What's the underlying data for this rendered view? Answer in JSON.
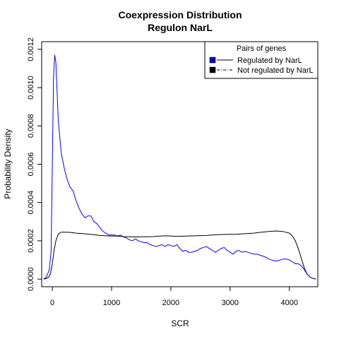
{
  "chart_data": {
    "type": "line",
    "title": [
      "Coexpression Distribution",
      "Regulon NarL"
    ],
    "xlabel": "SCR",
    "ylabel": "Probability Density",
    "xlim": [
      -180,
      4480
    ],
    "ylim": [
      -4e-05,
      0.00124
    ],
    "x_ticks": [
      0,
      1000,
      2000,
      3000,
      4000
    ],
    "x_tick_labels": [
      "0",
      "1000",
      "2000",
      "3000",
      "4000"
    ],
    "y_ticks": [
      0,
      0.0002,
      0.0004,
      0.0006,
      0.0008,
      0.001,
      0.0012
    ],
    "y_tick_labels": [
      "0.0000",
      "0.0002",
      "0.0004",
      "0.0006",
      "0.0008",
      "0.0010",
      "0.0012"
    ],
    "grid": false,
    "legend": {
      "title": "Pairs of genes",
      "position": "top-right",
      "entries": [
        "Regulated by  NarL",
        "Not regulated by  NarL"
      ]
    },
    "series": [
      {
        "name": "Regulated by  NarL",
        "color": "#0000ff",
        "style": "solid",
        "x": [
          -150,
          -100,
          -50,
          -20,
          0,
          20,
          40,
          60,
          80,
          100,
          150,
          200,
          250,
          300,
          350,
          400,
          450,
          500,
          550,
          600,
          650,
          700,
          750,
          800,
          850,
          900,
          950,
          1000,
          1050,
          1100,
          1150,
          1200,
          1250,
          1300,
          1350,
          1400,
          1450,
          1500,
          1550,
          1600,
          1650,
          1700,
          1750,
          1800,
          1850,
          1900,
          1950,
          2000,
          2050,
          2100,
          2150,
          2200,
          2250,
          2300,
          2350,
          2400,
          2450,
          2500,
          2550,
          2600,
          2650,
          2700,
          2750,
          2800,
          2850,
          2900,
          2950,
          3000,
          3050,
          3100,
          3150,
          3200,
          3250,
          3300,
          3350,
          3400,
          3450,
          3500,
          3550,
          3600,
          3650,
          3700,
          3750,
          3800,
          3850,
          3900,
          3950,
          4000,
          4050,
          4100,
          4150,
          4200,
          4250,
          4300,
          4350,
          4400,
          4450
        ],
        "y": [
          0.0,
          1e-05,
          5e-05,
          0.00015,
          0.0006,
          0.00105,
          0.00117,
          0.00113,
          0.00098,
          0.00083,
          0.00066,
          0.00058,
          0.00052,
          0.00048,
          0.00046,
          0.00041,
          0.00037,
          0.00034,
          0.00032,
          0.00033,
          0.00033,
          0.0003,
          0.00029,
          0.00027,
          0.00025,
          0.00024,
          0.00023,
          0.00023,
          0.00023,
          0.000225,
          0.00023,
          0.00022,
          0.000215,
          0.000205,
          0.0002,
          0.00021,
          0.0002,
          0.000195,
          0.00019,
          0.00019,
          0.00018,
          0.000175,
          0.00017,
          0.000175,
          0.00018,
          0.00017,
          0.00018,
          0.000175,
          0.00017,
          0.00018,
          0.00016,
          0.000145,
          0.00015,
          0.00014,
          0.00014,
          0.000145,
          0.00015,
          0.00016,
          0.000165,
          0.00017,
          0.00016,
          0.00015,
          0.00014,
          0.00015,
          0.00016,
          0.000165,
          0.00015,
          0.00014,
          0.00013,
          0.000145,
          0.00015,
          0.00014,
          0.000145,
          0.00014,
          0.000135,
          0.00013,
          0.00013,
          0.000125,
          0.00012,
          0.000115,
          0.000105,
          0.0001,
          9.5e-05,
          9.5e-05,
          0.0001,
          0.000105,
          0.000105,
          0.0001,
          9e-05,
          8e-05,
          8e-05,
          7e-05,
          5e-05,
          2.5e-05,
          1e-05,
          3e-06,
          0.0
        ]
      },
      {
        "name": "Not regulated by  NarL",
        "color": "#000000",
        "style": "solid",
        "x": [
          -150,
          -100,
          -60,
          -30,
          0,
          30,
          60,
          100,
          150,
          200,
          300,
          400,
          500,
          600,
          700,
          800,
          900,
          1000,
          1100,
          1200,
          1300,
          1400,
          1500,
          1600,
          1700,
          1800,
          1900,
          2000,
          2100,
          2200,
          2300,
          2400,
          2500,
          2600,
          2700,
          2800,
          2900,
          3000,
          3100,
          3200,
          3300,
          3400,
          3500,
          3600,
          3700,
          3800,
          3900,
          4000,
          4050,
          4100,
          4150,
          4200,
          4250,
          4300,
          4350,
          4400,
          4450
        ],
        "y": [
          0.0,
          3e-06,
          1e-05,
          3e-05,
          8e-05,
          0.00015,
          0.0002,
          0.000235,
          0.000245,
          0.000245,
          0.000244,
          0.00024,
          0.000238,
          0.000235,
          0.000232,
          0.000228,
          0.000226,
          0.000225,
          0.000224,
          0.000222,
          0.000221,
          0.00022,
          0.000221,
          0.000221,
          0.000222,
          0.000224,
          0.000226,
          0.000225,
          0.000223,
          0.000224,
          0.000225,
          0.000226,
          0.000227,
          0.000228,
          0.00023,
          0.000232,
          0.000233,
          0.000234,
          0.000234,
          0.000236,
          0.000238,
          0.00024,
          0.000244,
          0.000247,
          0.00025,
          0.000251,
          0.000248,
          0.00024,
          0.000225,
          0.0002,
          0.00016,
          0.00011,
          6e-05,
          2.5e-05,
          1e-05,
          3e-06,
          0.0
        ]
      }
    ]
  }
}
